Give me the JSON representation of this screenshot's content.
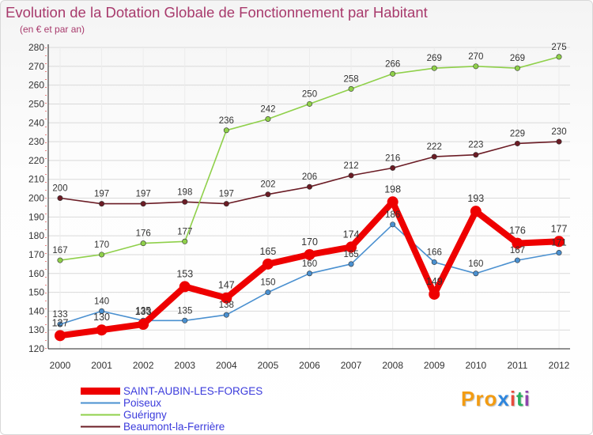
{
  "header": {
    "title": "Evolution de la Dotation Globale de Fonctionnement par Habitant",
    "subtitle": "(en € et par an)"
  },
  "logo": {
    "parts": [
      "Pro",
      "x",
      "i",
      "t",
      "i"
    ],
    "colors": [
      "#f39c12",
      "#2e86de",
      "#e74c3c",
      "#27ae60",
      "#8e44ad"
    ]
  },
  "chart_data": {
    "type": "line",
    "title": "Evolution de la Dotation Globale de Fonctionnement par Habitant",
    "subtitle": "(en € et par an)",
    "xlabel": "",
    "ylabel": "",
    "ylim": [
      120,
      280
    ],
    "y_ticks": [
      120,
      130,
      140,
      150,
      160,
      170,
      180,
      190,
      200,
      210,
      220,
      230,
      240,
      250,
      260,
      270,
      280
    ],
    "grid": true,
    "legend_position": "bottom-left",
    "x": [
      "2000",
      "2001",
      "2002",
      "2003",
      "2004",
      "2005",
      "2006",
      "2007",
      "2008",
      "2009",
      "2010",
      "2011",
      "2012"
    ],
    "series": [
      {
        "name": "Beaumont-la-Ferrière",
        "color": "#6b1c25",
        "values": [
          200,
          197,
          197,
          198,
          197,
          202,
          206,
          212,
          216,
          222,
          223,
          229,
          230
        ],
        "labels": [
          "200",
          "197",
          "197",
          "198",
          "197",
          "202",
          "206",
          "212",
          "216",
          "222",
          "223",
          "229",
          "230"
        ]
      },
      {
        "name": "Guérigny",
        "color": "#8fd04a",
        "values": [
          167,
          170,
          176,
          177,
          236,
          242,
          250,
          258,
          266,
          269,
          270,
          269,
          275
        ],
        "labels": [
          "167",
          "170",
          "176",
          "177",
          "236",
          "242",
          "250",
          "258",
          "266",
          "269",
          "270",
          "269",
          "275"
        ]
      },
      {
        "name": "Poiseux",
        "color": "#4a90d0",
        "values": [
          133,
          140,
          135,
          135,
          138,
          150,
          160,
          165,
          186,
          166,
          160,
          167,
          171
        ],
        "labels": [
          "133",
          "140",
          "135",
          "135",
          "138",
          "150",
          "160",
          "165",
          "186",
          "166",
          "160",
          "167",
          "171"
        ]
      },
      {
        "name": "SAINT-AUBIN-LES-FORGES",
        "color": "#ee0000",
        "values": [
          127,
          130,
          133,
          153,
          147,
          165,
          170,
          174,
          198,
          149,
          193,
          176,
          177
        ],
        "labels": [
          "127",
          "130",
          "133",
          "153",
          "147",
          "165",
          "170",
          "174",
          "198",
          "149",
          "193",
          "176",
          "177"
        ]
      }
    ]
  },
  "legend": {
    "items": [
      {
        "name": "SAINT-AUBIN-LES-FORGES",
        "color": "#ee0000",
        "weight": "thick"
      },
      {
        "name": "Poiseux",
        "color": "#4a90d0",
        "weight": "thin"
      },
      {
        "name": "Guérigny",
        "color": "#8fd04a",
        "weight": "thin"
      },
      {
        "name": "Beaumont-la-Ferrière",
        "color": "#6b1c25",
        "weight": "thin"
      }
    ]
  }
}
